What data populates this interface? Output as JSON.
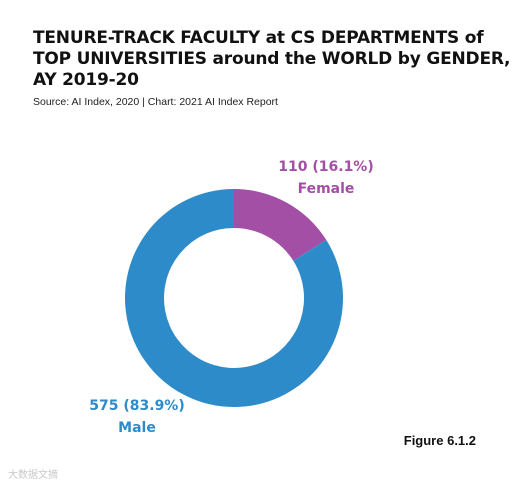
{
  "title_lines": [
    "TENURE-TRACK FACULTY at CS DEPARTMENTS of",
    "TOP UNIVERSITIES around the WORLD by GENDER,",
    "AY 2019-20"
  ],
  "source": "Source: AI Index, 2020 | Chart: 2021 AI Index Report",
  "figure_label": "Figure 6.1.2",
  "watermark": "大数据文摘",
  "chart_data": {
    "type": "pie",
    "donut": true,
    "slices": [
      {
        "label": "Female",
        "value": 110,
        "percent": 16.1,
        "value_text": "110 (16.1%)",
        "color": "#A34FA6"
      },
      {
        "label": "Male",
        "value": 575,
        "percent": 83.9,
        "value_text": "575 (83.9%)",
        "color": "#2E8BC9"
      }
    ]
  }
}
